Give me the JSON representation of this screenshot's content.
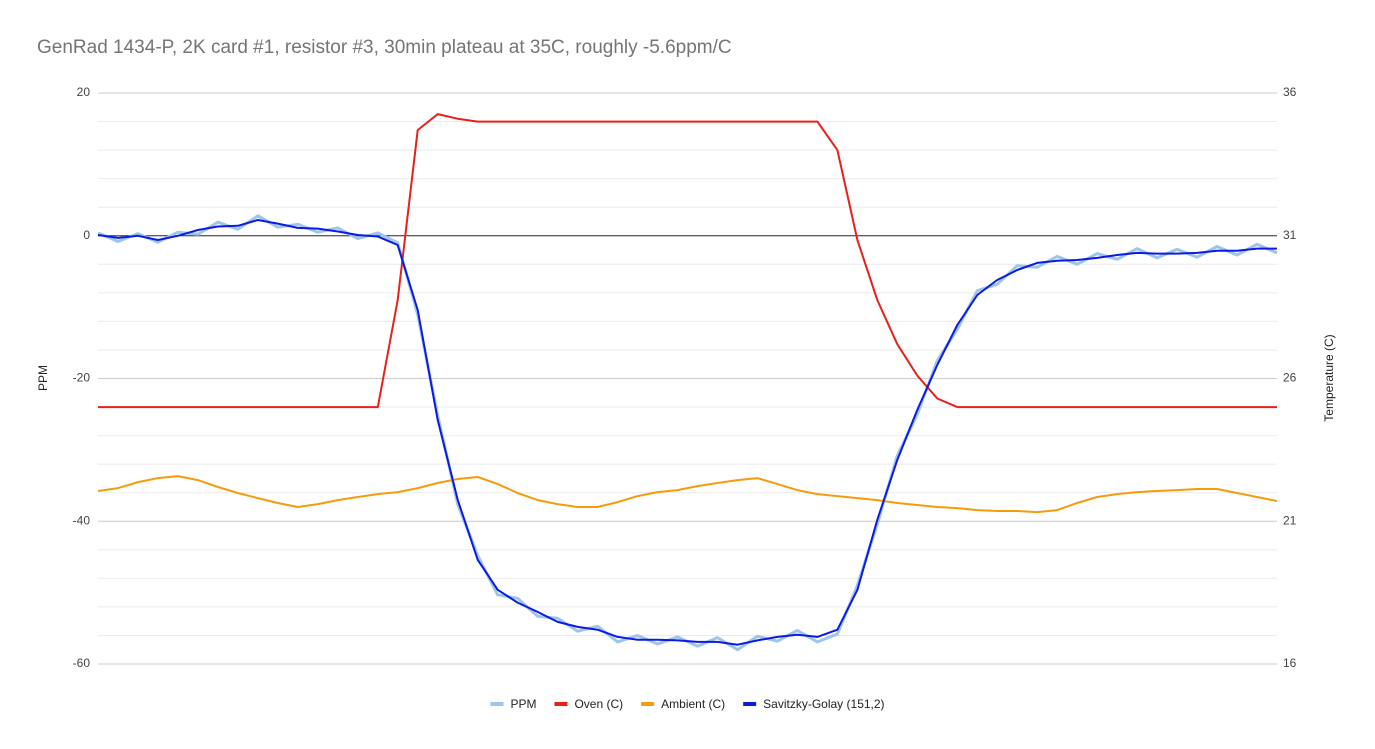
{
  "chart_data": {
    "type": "line",
    "title": "GenRad 1434-P, 2K card #1, resistor #3, 30min plateau at 35C, roughly -5.6ppm/C",
    "y_label": "PPM",
    "y2_label": "Temperature (C)",
    "ylim": [
      -60,
      20
    ],
    "yticks": [
      -60,
      -40,
      -20,
      0,
      20
    ],
    "minor_yticks": [
      -56,
      -52,
      -48,
      -44,
      -36,
      -32,
      -28,
      -24,
      -16,
      -12,
      -8,
      -4,
      4,
      8,
      12,
      16
    ],
    "y2lim": [
      16,
      36
    ],
    "y2ticks": [
      16,
      21,
      26,
      31,
      36
    ],
    "grid": true,
    "zero_line": true,
    "legend": "bottom",
    "series": [
      {
        "name": "PPM",
        "color": "#9fc5e8",
        "values": [
          0.4,
          -0.8,
          0.3,
          -0.9,
          0.5,
          0.2,
          1.9,
          0.9,
          2.8,
          1.2,
          1.6,
          0.5,
          1.1,
          -0.4,
          0.4,
          -1.0,
          -11.0,
          -25.2,
          -37.6,
          -44.8,
          -50.3,
          -50.8,
          -53.3,
          -53.6,
          -55.4,
          -54.7,
          -56.9,
          -56.0,
          -57.2,
          -56.2,
          -57.5,
          -56.3,
          -58.0,
          -56.1,
          -56.8,
          -55.3,
          -56.9,
          -55.8,
          -49.0,
          -40.4,
          -30.8,
          -25.0,
          -17.5,
          -13.1,
          -7.7,
          -6.8,
          -4.2,
          -4.4,
          -2.9,
          -4.0,
          -2.5,
          -3.3,
          -1.8,
          -3.1,
          -1.9,
          -3.0,
          -1.5,
          -2.7,
          -1.2,
          -2.4
        ]
      },
      {
        "name": "Oven (C)",
        "color": "#e8201c",
        "axis": "y2",
        "values": [
          25.0,
          25.0,
          25.0,
          25.0,
          25.0,
          25.0,
          25.0,
          25.0,
          25.0,
          25.0,
          25.0,
          25.0,
          25.0,
          25.0,
          25.0,
          28.75,
          34.7,
          35.26,
          35.1,
          35.0,
          35.0,
          35.0,
          35.0,
          35.0,
          35.0,
          35.0,
          35.0,
          35.0,
          35.0,
          35.0,
          35.0,
          35.0,
          35.0,
          35.0,
          35.0,
          35.0,
          35.0,
          34.0,
          30.85,
          28.75,
          27.2,
          26.1,
          25.3,
          25.0,
          25.0,
          25.0,
          25.0,
          25.0,
          25.0,
          25.0,
          25.0,
          25.0,
          25.0,
          25.0,
          25.0,
          25.0,
          25.0,
          25.0,
          25.0,
          25.0
        ]
      },
      {
        "name": "Ambient (C)",
        "color": "#f49c0e",
        "axis": "y2",
        "values": [
          22.06,
          22.16,
          22.37,
          22.51,
          22.58,
          22.44,
          22.2,
          21.99,
          21.81,
          21.64,
          21.5,
          21.6,
          21.74,
          21.85,
          21.95,
          22.02,
          22.16,
          22.34,
          22.48,
          22.55,
          22.3,
          21.99,
          21.74,
          21.6,
          21.5,
          21.5,
          21.67,
          21.88,
          22.02,
          22.09,
          22.23,
          22.34,
          22.44,
          22.51,
          22.3,
          22.09,
          21.95,
          21.88,
          21.81,
          21.74,
          21.64,
          21.57,
          21.5,
          21.46,
          21.39,
          21.36,
          21.36,
          21.32,
          21.39,
          21.64,
          21.85,
          21.95,
          22.02,
          22.06,
          22.09,
          22.13,
          22.13,
          21.99,
          21.85,
          21.71
        ]
      },
      {
        "name": "Savitzky-Golay (151,2)",
        "color": "#0a1be6",
        "values": [
          0.1,
          -0.3,
          0,
          -0.6,
          0,
          0.8,
          1.3,
          1.4,
          2.2,
          1.7,
          1.1,
          1.0,
          0.6,
          0.1,
          -0.1,
          -1.3,
          -10.4,
          -25.8,
          -37.0,
          -45.4,
          -49.6,
          -51.4,
          -52.7,
          -54.1,
          -54.8,
          -55.2,
          -56.2,
          -56.6,
          -56.6,
          -56.7,
          -56.9,
          -56.9,
          -57.3,
          -56.7,
          -56.2,
          -55.9,
          -56.2,
          -55.2,
          -49.6,
          -39.8,
          -31.4,
          -24.4,
          -18.1,
          -12.5,
          -8.3,
          -6.2,
          -4.8,
          -3.8,
          -3.5,
          -3.4,
          -3.1,
          -2.7,
          -2.4,
          -2.5,
          -2.5,
          -2.4,
          -2.1,
          -2.1,
          -1.8,
          -1.8
        ]
      }
    ]
  }
}
